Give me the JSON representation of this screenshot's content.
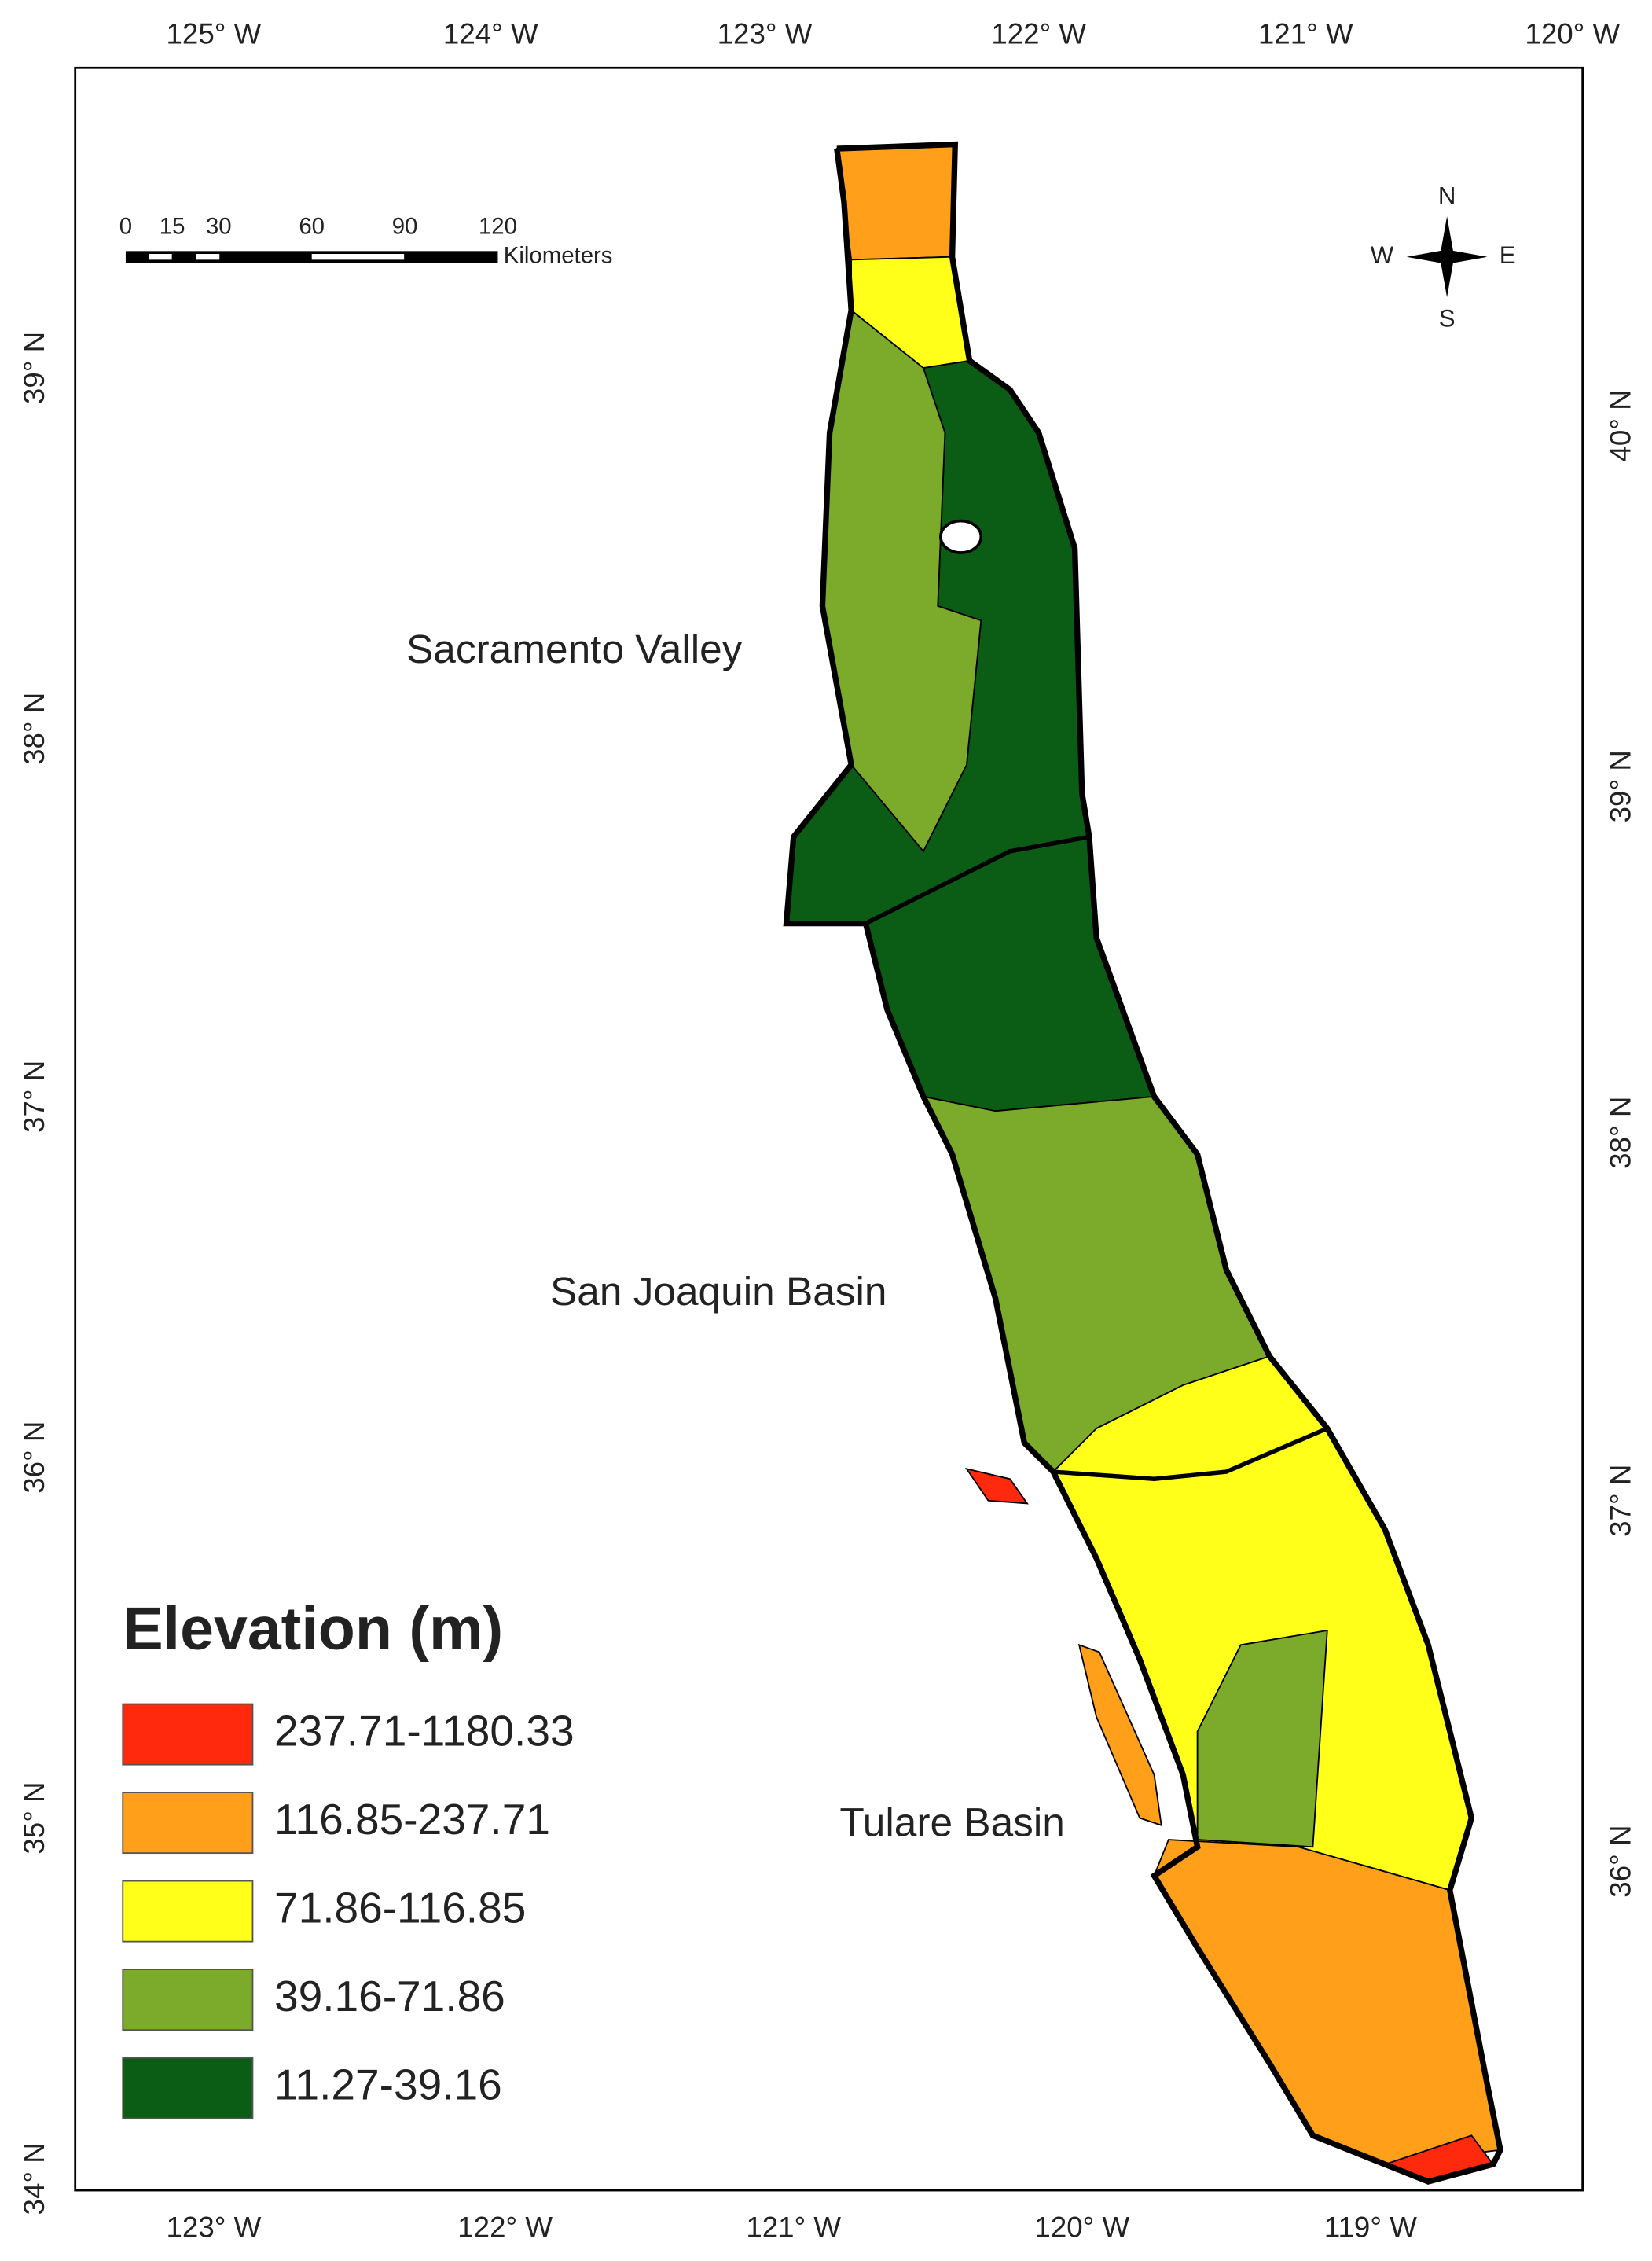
{
  "map": {
    "top_labels": [
      "125° W",
      "124° W",
      "123° W",
      "122° W",
      "121° W",
      "120° W"
    ],
    "bottom_labels": [
      "123° W",
      "122° W",
      "121° W",
      "120° W",
      "119° W"
    ],
    "left_labels": [
      "39° N",
      "38° N",
      "37° N",
      "36° N",
      "35° N",
      "34° N"
    ],
    "right_labels": [
      "40° N",
      "39° N",
      "38° N",
      "37° N",
      "36° N"
    ],
    "scale_bar": {
      "ticks": [
        0,
        15,
        30,
        60,
        90,
        120
      ],
      "unit": "Kilometers"
    },
    "compass": {
      "n": "N",
      "s": "S",
      "w": "W",
      "e": "E"
    },
    "regions": [
      "Sacramento Valley",
      "San Joaquin Basin",
      "Tulare Basin"
    ],
    "legend": {
      "title": "Elevation (m)",
      "items": [
        {
          "label": "237.71-1180.33",
          "color": "#ff2a0e"
        },
        {
          "label": "116.85-237.71",
          "color": "#ff9f1a"
        },
        {
          "label": "71.86-116.85",
          "color": "#ffff1a"
        },
        {
          "label": "39.16-71.86",
          "color": "#7caa2a"
        },
        {
          "label": "11.27-39.16",
          "color": "#0b5c14"
        }
      ]
    }
  }
}
